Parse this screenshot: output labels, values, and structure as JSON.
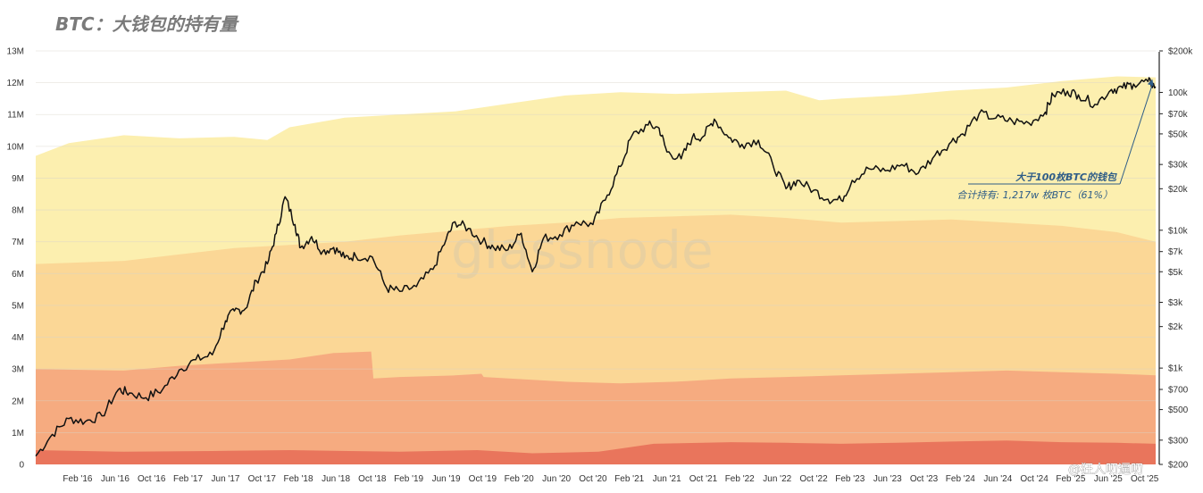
{
  "colors": {
    "band_1": "#e9755c",
    "band_2": "#f6ab80",
    "band_3": "#fbd796",
    "band_4": "#fcefaf",
    "price_line": "#111111",
    "annotation": "#2f5d87",
    "watermark": "#c9c2b3"
  },
  "chart_data": {
    "type": "area",
    "title": "BTC：大钱包的持有量",
    "watermark": "glassnode",
    "credit": "@狂人叨逼叨",
    "left_axis": {
      "ticks": [
        "0",
        "1M",
        "2M",
        "3M",
        "4M",
        "5M",
        "6M",
        "7M",
        "8M",
        "9M",
        "10M",
        "11M",
        "12M",
        "13M"
      ],
      "range_millions": [
        0,
        13
      ]
    },
    "right_axis": {
      "scale": "log",
      "range_usd": [
        200,
        200000
      ],
      "ticks": [
        {
          "label": "$200k",
          "value": 200000
        },
        {
          "label": "100k",
          "value": 100000
        },
        {
          "label": "$70k",
          "value": 70000
        },
        {
          "label": "$50k",
          "value": 50000
        },
        {
          "label": "$30k",
          "value": 30000
        },
        {
          "label": "$20k",
          "value": 20000
        },
        {
          "label": "$10k",
          "value": 10000
        },
        {
          "label": "$7k",
          "value": 7000
        },
        {
          "label": "$5k",
          "value": 5000
        },
        {
          "label": "$3k",
          "value": 3000
        },
        {
          "label": "$2k",
          "value": 2000
        },
        {
          "label": "$1k",
          "value": 1000
        },
        {
          "label": "$700",
          "value": 700
        },
        {
          "label": "$500",
          "value": 500
        },
        {
          "label": "$300",
          "value": 300
        },
        {
          "label": "$200",
          "value": 200
        }
      ]
    },
    "x_axis": {
      "range_years": [
        2015.7,
        2025.85
      ],
      "ticks": [
        {
          "label": "Feb '16",
          "t": 2016.08
        },
        {
          "label": "Jun '16",
          "t": 2016.42
        },
        {
          "label": "Oct '16",
          "t": 2016.75
        },
        {
          "label": "Feb '17",
          "t": 2017.08
        },
        {
          "label": "Jun '17",
          "t": 2017.42
        },
        {
          "label": "Oct '17",
          "t": 2017.75
        },
        {
          "label": "Feb '18",
          "t": 2018.08
        },
        {
          "label": "Jun '18",
          "t": 2018.42
        },
        {
          "label": "Oct '18",
          "t": 2018.75
        },
        {
          "label": "Feb '19",
          "t": 2019.08
        },
        {
          "label": "Jun '19",
          "t": 2019.42
        },
        {
          "label": "Oct '19",
          "t": 2019.75
        },
        {
          "label": "Feb '20",
          "t": 2020.08
        },
        {
          "label": "Jun '20",
          "t": 2020.42
        },
        {
          "label": "Oct '20",
          "t": 2020.75
        },
        {
          "label": "Feb '21",
          "t": 2021.08
        },
        {
          "label": "Jun '21",
          "t": 2021.42
        },
        {
          "label": "Oct '21",
          "t": 2021.75
        },
        {
          "label": "Feb '22",
          "t": 2022.08
        },
        {
          "label": "Jun '22",
          "t": 2022.42
        },
        {
          "label": "Oct '22",
          "t": 2022.75
        },
        {
          "label": "Feb '23",
          "t": 2023.08
        },
        {
          "label": "Jun '23",
          "t": 2023.42
        },
        {
          "label": "Oct '23",
          "t": 2023.75
        },
        {
          "label": "Feb '24",
          "t": 2024.08
        },
        {
          "label": "Jun '24",
          "t": 2024.42
        },
        {
          "label": "Oct '24",
          "t": 2024.75
        },
        {
          "label": "Feb '25",
          "t": 2025.08
        },
        {
          "label": "Jun '25",
          "t": 2025.42
        },
        {
          "label": "Oct '25",
          "t": 2025.75
        }
      ]
    },
    "bands": [
      {
        "name": "band-1",
        "points": [
          [
            2015.7,
            0.45
          ],
          [
            2016.5,
            0.4
          ],
          [
            2017.3,
            0.42
          ],
          [
            2018.0,
            0.45
          ],
          [
            2019.0,
            0.4
          ],
          [
            2019.7,
            0.45
          ],
          [
            2020.2,
            0.35
          ],
          [
            2020.8,
            0.4
          ],
          [
            2021.0,
            0.5
          ],
          [
            2021.3,
            0.65
          ],
          [
            2022.0,
            0.7
          ],
          [
            2022.5,
            0.68
          ],
          [
            2023.0,
            0.65
          ],
          [
            2023.5,
            0.68
          ],
          [
            2024.0,
            0.72
          ],
          [
            2024.5,
            0.75
          ],
          [
            2025.0,
            0.7
          ],
          [
            2025.5,
            0.68
          ],
          [
            2025.85,
            0.65
          ]
        ]
      },
      {
        "name": "band-2",
        "points": [
          [
            2015.7,
            3.0
          ],
          [
            2016.5,
            2.95
          ],
          [
            2017.0,
            3.1
          ],
          [
            2017.5,
            3.2
          ],
          [
            2018.0,
            3.3
          ],
          [
            2018.4,
            3.5
          ],
          [
            2018.74,
            3.55
          ],
          [
            2018.76,
            2.7
          ],
          [
            2019.0,
            2.75
          ],
          [
            2019.5,
            2.8
          ],
          [
            2019.74,
            2.85
          ],
          [
            2019.76,
            2.75
          ],
          [
            2020.5,
            2.6
          ],
          [
            2021.0,
            2.55
          ],
          [
            2021.5,
            2.6
          ],
          [
            2022.0,
            2.7
          ],
          [
            2022.5,
            2.75
          ],
          [
            2023.0,
            2.8
          ],
          [
            2023.5,
            2.85
          ],
          [
            2024.0,
            2.9
          ],
          [
            2024.5,
            2.95
          ],
          [
            2025.0,
            2.9
          ],
          [
            2025.5,
            2.85
          ],
          [
            2025.85,
            2.8
          ]
        ]
      },
      {
        "name": "band-3",
        "points": [
          [
            2015.7,
            6.3
          ],
          [
            2016.5,
            6.4
          ],
          [
            2017.0,
            6.6
          ],
          [
            2017.5,
            6.8
          ],
          [
            2018.0,
            6.9
          ],
          [
            2018.5,
            7.0
          ],
          [
            2019.0,
            7.2
          ],
          [
            2019.5,
            7.35
          ],
          [
            2020.0,
            7.5
          ],
          [
            2020.5,
            7.6
          ],
          [
            2021.0,
            7.75
          ],
          [
            2021.5,
            7.8
          ],
          [
            2022.0,
            7.85
          ],
          [
            2022.5,
            7.75
          ],
          [
            2023.0,
            7.6
          ],
          [
            2023.5,
            7.65
          ],
          [
            2024.0,
            7.7
          ],
          [
            2024.5,
            7.6
          ],
          [
            2025.0,
            7.5
          ],
          [
            2025.5,
            7.3
          ],
          [
            2025.85,
            7.0
          ]
        ]
      },
      {
        "name": "band-4",
        "points": [
          [
            2015.7,
            9.7
          ],
          [
            2016.0,
            10.1
          ],
          [
            2016.5,
            10.35
          ],
          [
            2017.0,
            10.25
          ],
          [
            2017.5,
            10.3
          ],
          [
            2017.8,
            10.2
          ],
          [
            2018.0,
            10.6
          ],
          [
            2018.5,
            10.9
          ],
          [
            2019.0,
            11.0
          ],
          [
            2019.5,
            11.1
          ],
          [
            2020.0,
            11.35
          ],
          [
            2020.5,
            11.6
          ],
          [
            2021.0,
            11.7
          ],
          [
            2021.5,
            11.65
          ],
          [
            2022.0,
            11.7
          ],
          [
            2022.5,
            11.75
          ],
          [
            2022.8,
            11.45
          ],
          [
            2023.0,
            11.5
          ],
          [
            2023.5,
            11.6
          ],
          [
            2024.0,
            11.75
          ],
          [
            2024.5,
            11.85
          ],
          [
            2025.0,
            12.05
          ],
          [
            2025.5,
            12.2
          ],
          [
            2025.85,
            12.17
          ]
        ]
      }
    ],
    "price_series": {
      "name": "BTC price (USD, log scale)",
      "points": [
        [
          2015.7,
          230
        ],
        [
          2015.85,
          330
        ],
        [
          2016.0,
          430
        ],
        [
          2016.15,
          410
        ],
        [
          2016.3,
          450
        ],
        [
          2016.45,
          700
        ],
        [
          2016.55,
          660
        ],
        [
          2016.7,
          610
        ],
        [
          2016.85,
          700
        ],
        [
          2017.0,
          970
        ],
        [
          2017.15,
          1150
        ],
        [
          2017.3,
          1250
        ],
        [
          2017.42,
          2200
        ],
        [
          2017.5,
          2600
        ],
        [
          2017.6,
          2700
        ],
        [
          2017.7,
          4300
        ],
        [
          2017.8,
          5700
        ],
        [
          2017.88,
          9500
        ],
        [
          2017.96,
          17500
        ],
        [
          2018.05,
          11000
        ],
        [
          2018.1,
          7500
        ],
        [
          2018.2,
          9000
        ],
        [
          2018.3,
          7000
        ],
        [
          2018.4,
          7500
        ],
        [
          2018.5,
          6300
        ],
        [
          2018.6,
          6500
        ],
        [
          2018.75,
          6400
        ],
        [
          2018.88,
          3800
        ],
        [
          2019.0,
          3600
        ],
        [
          2019.15,
          3900
        ],
        [
          2019.3,
          5200
        ],
        [
          2019.42,
          8600
        ],
        [
          2019.5,
          11500
        ],
        [
          2019.62,
          10300
        ],
        [
          2019.75,
          8300
        ],
        [
          2019.85,
          7500
        ],
        [
          2019.98,
          7200
        ],
        [
          2020.1,
          9500
        ],
        [
          2020.2,
          5000
        ],
        [
          2020.3,
          8700
        ],
        [
          2020.45,
          9300
        ],
        [
          2020.6,
          11500
        ],
        [
          2020.75,
          11000
        ],
        [
          2020.88,
          18000
        ],
        [
          2021.0,
          29000
        ],
        [
          2021.1,
          48000
        ],
        [
          2021.25,
          58000
        ],
        [
          2021.35,
          55000
        ],
        [
          2021.42,
          37000
        ],
        [
          2021.55,
          33000
        ],
        [
          2021.65,
          47000
        ],
        [
          2021.75,
          48000
        ],
        [
          2021.85,
          64000
        ],
        [
          2021.98,
          47000
        ],
        [
          2022.1,
          42000
        ],
        [
          2022.25,
          45000
        ],
        [
          2022.38,
          30000
        ],
        [
          2022.5,
          20000
        ],
        [
          2022.6,
          23000
        ],
        [
          2022.75,
          19500
        ],
        [
          2022.88,
          16800
        ],
        [
          2023.0,
          16500
        ],
        [
          2023.1,
          23000
        ],
        [
          2023.25,
          28000
        ],
        [
          2023.4,
          27000
        ],
        [
          2023.55,
          30000
        ],
        [
          2023.7,
          26000
        ],
        [
          2023.85,
          35000
        ],
        [
          2024.0,
          44000
        ],
        [
          2024.1,
          50000
        ],
        [
          2024.25,
          70000
        ],
        [
          2024.4,
          65000
        ],
        [
          2024.55,
          62000
        ],
        [
          2024.7,
          60000
        ],
        [
          2024.85,
          72000
        ],
        [
          2024.92,
          96000
        ],
        [
          2025.05,
          102000
        ],
        [
          2025.15,
          96000
        ],
        [
          2025.3,
          82000
        ],
        [
          2025.45,
          105000
        ],
        [
          2025.55,
          108000
        ],
        [
          2025.65,
          115000
        ],
        [
          2025.78,
          120000
        ],
        [
          2025.85,
          110000
        ]
      ]
    },
    "annotation": {
      "line1": "大于100枚BTC的钱包",
      "line2": "合计持有: 1,217w 枚BTC（61%）",
      "target_value_millions": 12.17
    }
  }
}
